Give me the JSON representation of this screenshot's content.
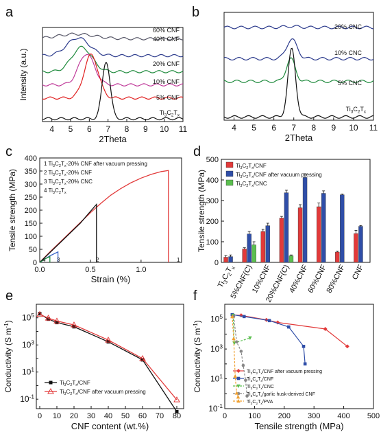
{
  "panel_letters": [
    "a",
    "b",
    "c",
    "d",
    "e",
    "f"
  ],
  "chart_data": [
    {
      "panel": "a",
      "type": "line",
      "xlabel": "2Theta",
      "ylabel": "Intensity (a.u.)",
      "xlim": [
        3.5,
        11
      ],
      "xticks": [
        4,
        5,
        6,
        7,
        8,
        9,
        10,
        11
      ],
      "series": [
        {
          "name": "60% CNF",
          "color": "#555566",
          "center": 5.3,
          "width": 2.2,
          "peak": 0.05,
          "base": 0.88
        },
        {
          "name": "40% CNF",
          "color": "#2b3a8c",
          "center": 5.4,
          "width": 1.35,
          "peak": 0.19,
          "base": 0.7
        },
        {
          "name": "20% CNF",
          "color": "#1e8a3c",
          "center": 5.6,
          "width": 1.2,
          "peak": 0.26,
          "base": 0.53
        },
        {
          "name": "10% CNF",
          "color": "#c03b9a",
          "center": 5.85,
          "width": 0.95,
          "peak": 0.33,
          "base": 0.39
        },
        {
          "name": "5% CNF",
          "color": "#e02020",
          "center": 6.1,
          "width": 0.85,
          "peak": 0.46,
          "base": 0.25
        },
        {
          "name": "Ti3C2Tx",
          "color": "#111111",
          "center": 6.9,
          "width": 0.48,
          "peak": 0.61,
          "base": 0.03
        }
      ]
    },
    {
      "panel": "b",
      "type": "line",
      "xlabel": "2Theta",
      "ylabel": "",
      "xlim": [
        3.5,
        11
      ],
      "xticks": [
        4,
        5,
        6,
        7,
        8,
        9,
        10,
        11
      ],
      "series": [
        {
          "name": "20% CNC",
          "color": "#2b3a8c",
          "center": 6.9,
          "width": 0.9,
          "peak": 0.01,
          "base": 0.86
        },
        {
          "name": "10% CNC",
          "color": "#2b3a8c",
          "center": 6.9,
          "width": 0.6,
          "peak": 0.18,
          "base": 0.57
        },
        {
          "name": "5% CNC",
          "color": "#1e8a3c",
          "center": 6.85,
          "width": 0.5,
          "peak": 0.21,
          "base": 0.36
        },
        {
          "name": "Ti3C2Tx",
          "color": "#111111",
          "center": 6.9,
          "width": 0.43,
          "peak": 0.63,
          "base": 0.03
        }
      ]
    },
    {
      "panel": "c",
      "type": "line",
      "xlabel": "Strain (%)",
      "ylabel": "Tensile strength (MPa)",
      "xlim": [
        0,
        1.4
      ],
      "ylim": [
        0,
        400
      ],
      "xticks": [
        0.0,
        0.5,
        1.0
      ],
      "yticks": [
        0,
        50,
        100,
        150,
        200,
        250,
        300,
        350,
        400
      ],
      "legend": [
        "1  Ti3C2Tx-20% CNF after vacuum pressing",
        "2  Ti3C2Tx-20% CNF",
        "3  Ti3C2Tx-20% CNC",
        "4  Ti3C2Tx"
      ],
      "curve_labels": [
        "4",
        "3",
        "2",
        "1"
      ],
      "series": [
        {
          "name": "1",
          "color": "#e23a3a",
          "points": [
            [
              0,
              0
            ],
            [
              0.1,
              40
            ],
            [
              0.3,
              115
            ],
            [
              0.5,
              190
            ],
            [
              0.6,
              225
            ],
            [
              0.7,
              257
            ],
            [
              0.8,
              283
            ],
            [
              0.9,
              305
            ],
            [
              1.0,
              323
            ],
            [
              1.1,
              337
            ],
            [
              1.2,
              348
            ],
            [
              1.27,
              352
            ],
            [
              1.27,
              0
            ]
          ]
        },
        {
          "name": "2",
          "color": "#111111",
          "points": [
            [
              0,
              0
            ],
            [
              0.2,
              75
            ],
            [
              0.4,
              150
            ],
            [
              0.56,
              222
            ],
            [
              0.56,
              0
            ]
          ]
        },
        {
          "name": "3",
          "color": "#3a66c8",
          "points": [
            [
              0,
              0
            ],
            [
              0.1,
              25
            ],
            [
              0.18,
              40
            ],
            [
              0.18,
              0
            ]
          ]
        },
        {
          "name": "4",
          "color": "#1e8a3c",
          "points": [
            [
              0,
              0
            ],
            [
              0.06,
              15
            ],
            [
              0.1,
              22
            ],
            [
              0.1,
              0
            ]
          ]
        }
      ]
    },
    {
      "panel": "d",
      "type": "bar",
      "ylabel": "Tensile strength (MPa)",
      "ylim": [
        0,
        500
      ],
      "yticks": [
        0,
        100,
        200,
        300,
        400,
        500
      ],
      "categories": [
        "Ti3C2Tx",
        "5%CNF(C)",
        "10%CNF",
        "20%CNF(C)",
        "40%CNF",
        "60%CNF",
        "80%CNF",
        "CNF"
      ],
      "series": [
        {
          "name": "Ti3C2Tx/CNF",
          "color": "#e23a3a",
          "values": [
            25,
            65,
            150,
            215,
            265,
            270,
            50,
            140
          ],
          "errors": [
            8,
            6,
            10,
            8,
            15,
            18,
            4,
            15
          ]
        },
        {
          "name": "Ti3C2Tx/CNF after vacuum pressing",
          "color": "#2f4ea8",
          "values": [
            28,
            138,
            178,
            338,
            412,
            335,
            328,
            175
          ],
          "errors": [
            8,
            12,
            12,
            12,
            18,
            12,
            4,
            4
          ]
        },
        {
          "name": "Ti3C2Tx/CNC",
          "color": "#5bbf4f",
          "values": [
            null,
            85,
            null,
            32,
            null,
            null,
            null,
            null
          ],
          "errors": [
            null,
            15,
            null,
            4,
            null,
            null,
            null,
            null
          ]
        }
      ]
    },
    {
      "panel": "e",
      "type": "line",
      "log_y": true,
      "xlabel": "CNF content (wt.%)",
      "ylabel": "Conductivity (S m-1)",
      "xlim": [
        -2,
        84
      ],
      "ylim": [
        0.02,
        1000000
      ],
      "xticks": [
        0,
        10,
        20,
        30,
        40,
        50,
        60,
        70,
        80
      ],
      "yticks_exp": [
        -1,
        1,
        3,
        5
      ],
      "x": [
        0,
        5,
        10,
        20,
        40,
        60,
        80
      ],
      "series": [
        {
          "name": "Ti3C2Tx/CNF",
          "color": "#111111",
          "marker": "square",
          "values": [
            200000,
            80000,
            45000,
            22000,
            1700,
            80,
            0.012
          ]
        },
        {
          "name": "Ti3C2Tx/CNF after vacuum pressing",
          "color": "#e23a3a",
          "marker": "triangle",
          "values": [
            180000,
            95000,
            58000,
            30000,
            2300,
            100,
            0.09
          ]
        }
      ]
    },
    {
      "panel": "f",
      "type": "scatter",
      "log_y": true,
      "xlabel": "Tensile strength (MPa)",
      "ylabel": "Conductivity (S m-1)",
      "xlim": [
        0,
        500
      ],
      "ylim": [
        0.1,
        1000000
      ],
      "xticks": [
        0,
        100,
        200,
        300,
        400,
        500
      ],
      "yticks_exp": [
        -1,
        1,
        3,
        5
      ],
      "series": [
        {
          "name": "Ti3C2Tx/CNF after vacuum pressing",
          "color": "#e23a3a",
          "marker": "diamond",
          "dash": "",
          "points": [
            [
              28,
              190000
            ],
            [
              55,
              180000
            ],
            [
              140,
              90000
            ],
            [
              178,
              60000
            ],
            [
              338,
              22000
            ],
            [
              412,
              1500
            ]
          ]
        },
        {
          "name": "Ti3C2Tx/CNF",
          "color": "#2f4ea8",
          "marker": "square",
          "dash": "",
          "points": [
            [
              25,
              200000
            ],
            [
              65,
              150000
            ],
            [
              150,
              80000
            ],
            [
              215,
              30000
            ],
            [
              265,
              1500
            ],
            [
              270,
              100
            ]
          ]
        },
        {
          "name": "Ti3C2Tx/CNC",
          "color": "#5bbf4f",
          "marker": "triangle-down",
          "dash": "3,2",
          "points": [
            [
              28,
              180000
            ],
            [
              32,
              2500
            ],
            [
              85,
              5500
            ]
          ]
        },
        {
          "name": "Ti3C2Tx/garlic husk-derived CNF",
          "color": "#888888",
          "marker": "circle",
          "dash": "3,2",
          "points": [
            [
              30,
              150000
            ],
            [
              40,
              3000
            ],
            [
              55,
              700
            ],
            [
              62,
              80
            ],
            [
              70,
              8
            ],
            [
              75,
              0.7
            ]
          ]
        },
        {
          "name": "Ti3C2Tx/PVA",
          "color": "#f0a030",
          "marker": "triangle",
          "dash": "3,2",
          "points": [
            [
              25,
              150000
            ],
            [
              30,
              5000
            ],
            [
              35,
              15
            ],
            [
              40,
              1.1
            ],
            [
              45,
              0.6
            ]
          ]
        }
      ]
    }
  ]
}
